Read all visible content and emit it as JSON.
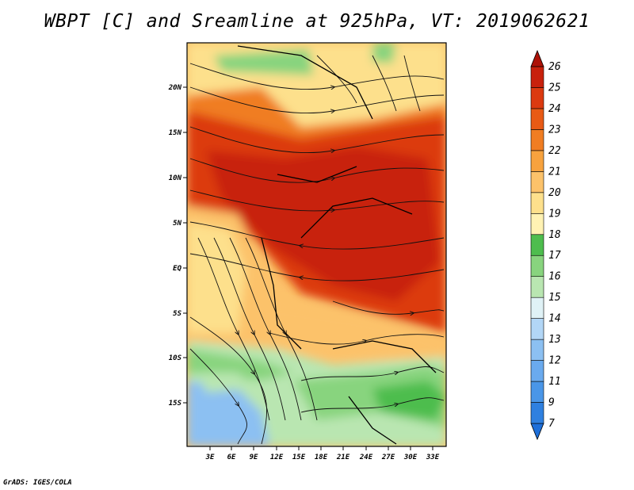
{
  "title": "WBPT [C] and Sreamline at 925hPa, VT: 2019062621",
  "footer": "GrADS: IGES/COLA",
  "latitude_labels": [
    "20N",
    "15N",
    "10N",
    "5N",
    "EQ",
    "5S",
    "10S",
    "15S"
  ],
  "longitude_labels": [
    "3E",
    "6E",
    "9E",
    "12E",
    "15E",
    "18E",
    "21E",
    "24E",
    "27E",
    "30E",
    "33E"
  ],
  "colorbar": {
    "labels": [
      "7",
      "9",
      "11",
      "12",
      "13",
      "14",
      "15",
      "16",
      "17",
      "18",
      "19",
      "20",
      "21",
      "22",
      "23",
      "24",
      "25",
      "26"
    ],
    "colors": [
      "#1e6fd9",
      "#2f80e0",
      "#4a96e8",
      "#6aaaee",
      "#8cc0f2",
      "#b2d6f6",
      "#e0f2f6",
      "#b9e6b1",
      "#88d47e",
      "#4ebd4e",
      "#fff2b3",
      "#fde08c",
      "#fcc26a",
      "#f7a23e",
      "#f07d22",
      "#e85a15",
      "#dc3a10",
      "#c8210c",
      "#ad1207"
    ]
  },
  "map_colors": {
    "hot_core": "#c8210c",
    "hot": "#dc3a10",
    "warm": "#f07d22",
    "mild": "#fcc26a",
    "cool": "#fde08c",
    "green_light": "#b9e6b1",
    "green": "#88d47e",
    "green_dark": "#4ebd4e",
    "blue": "#8cc0f2",
    "lines": "#111111"
  }
}
